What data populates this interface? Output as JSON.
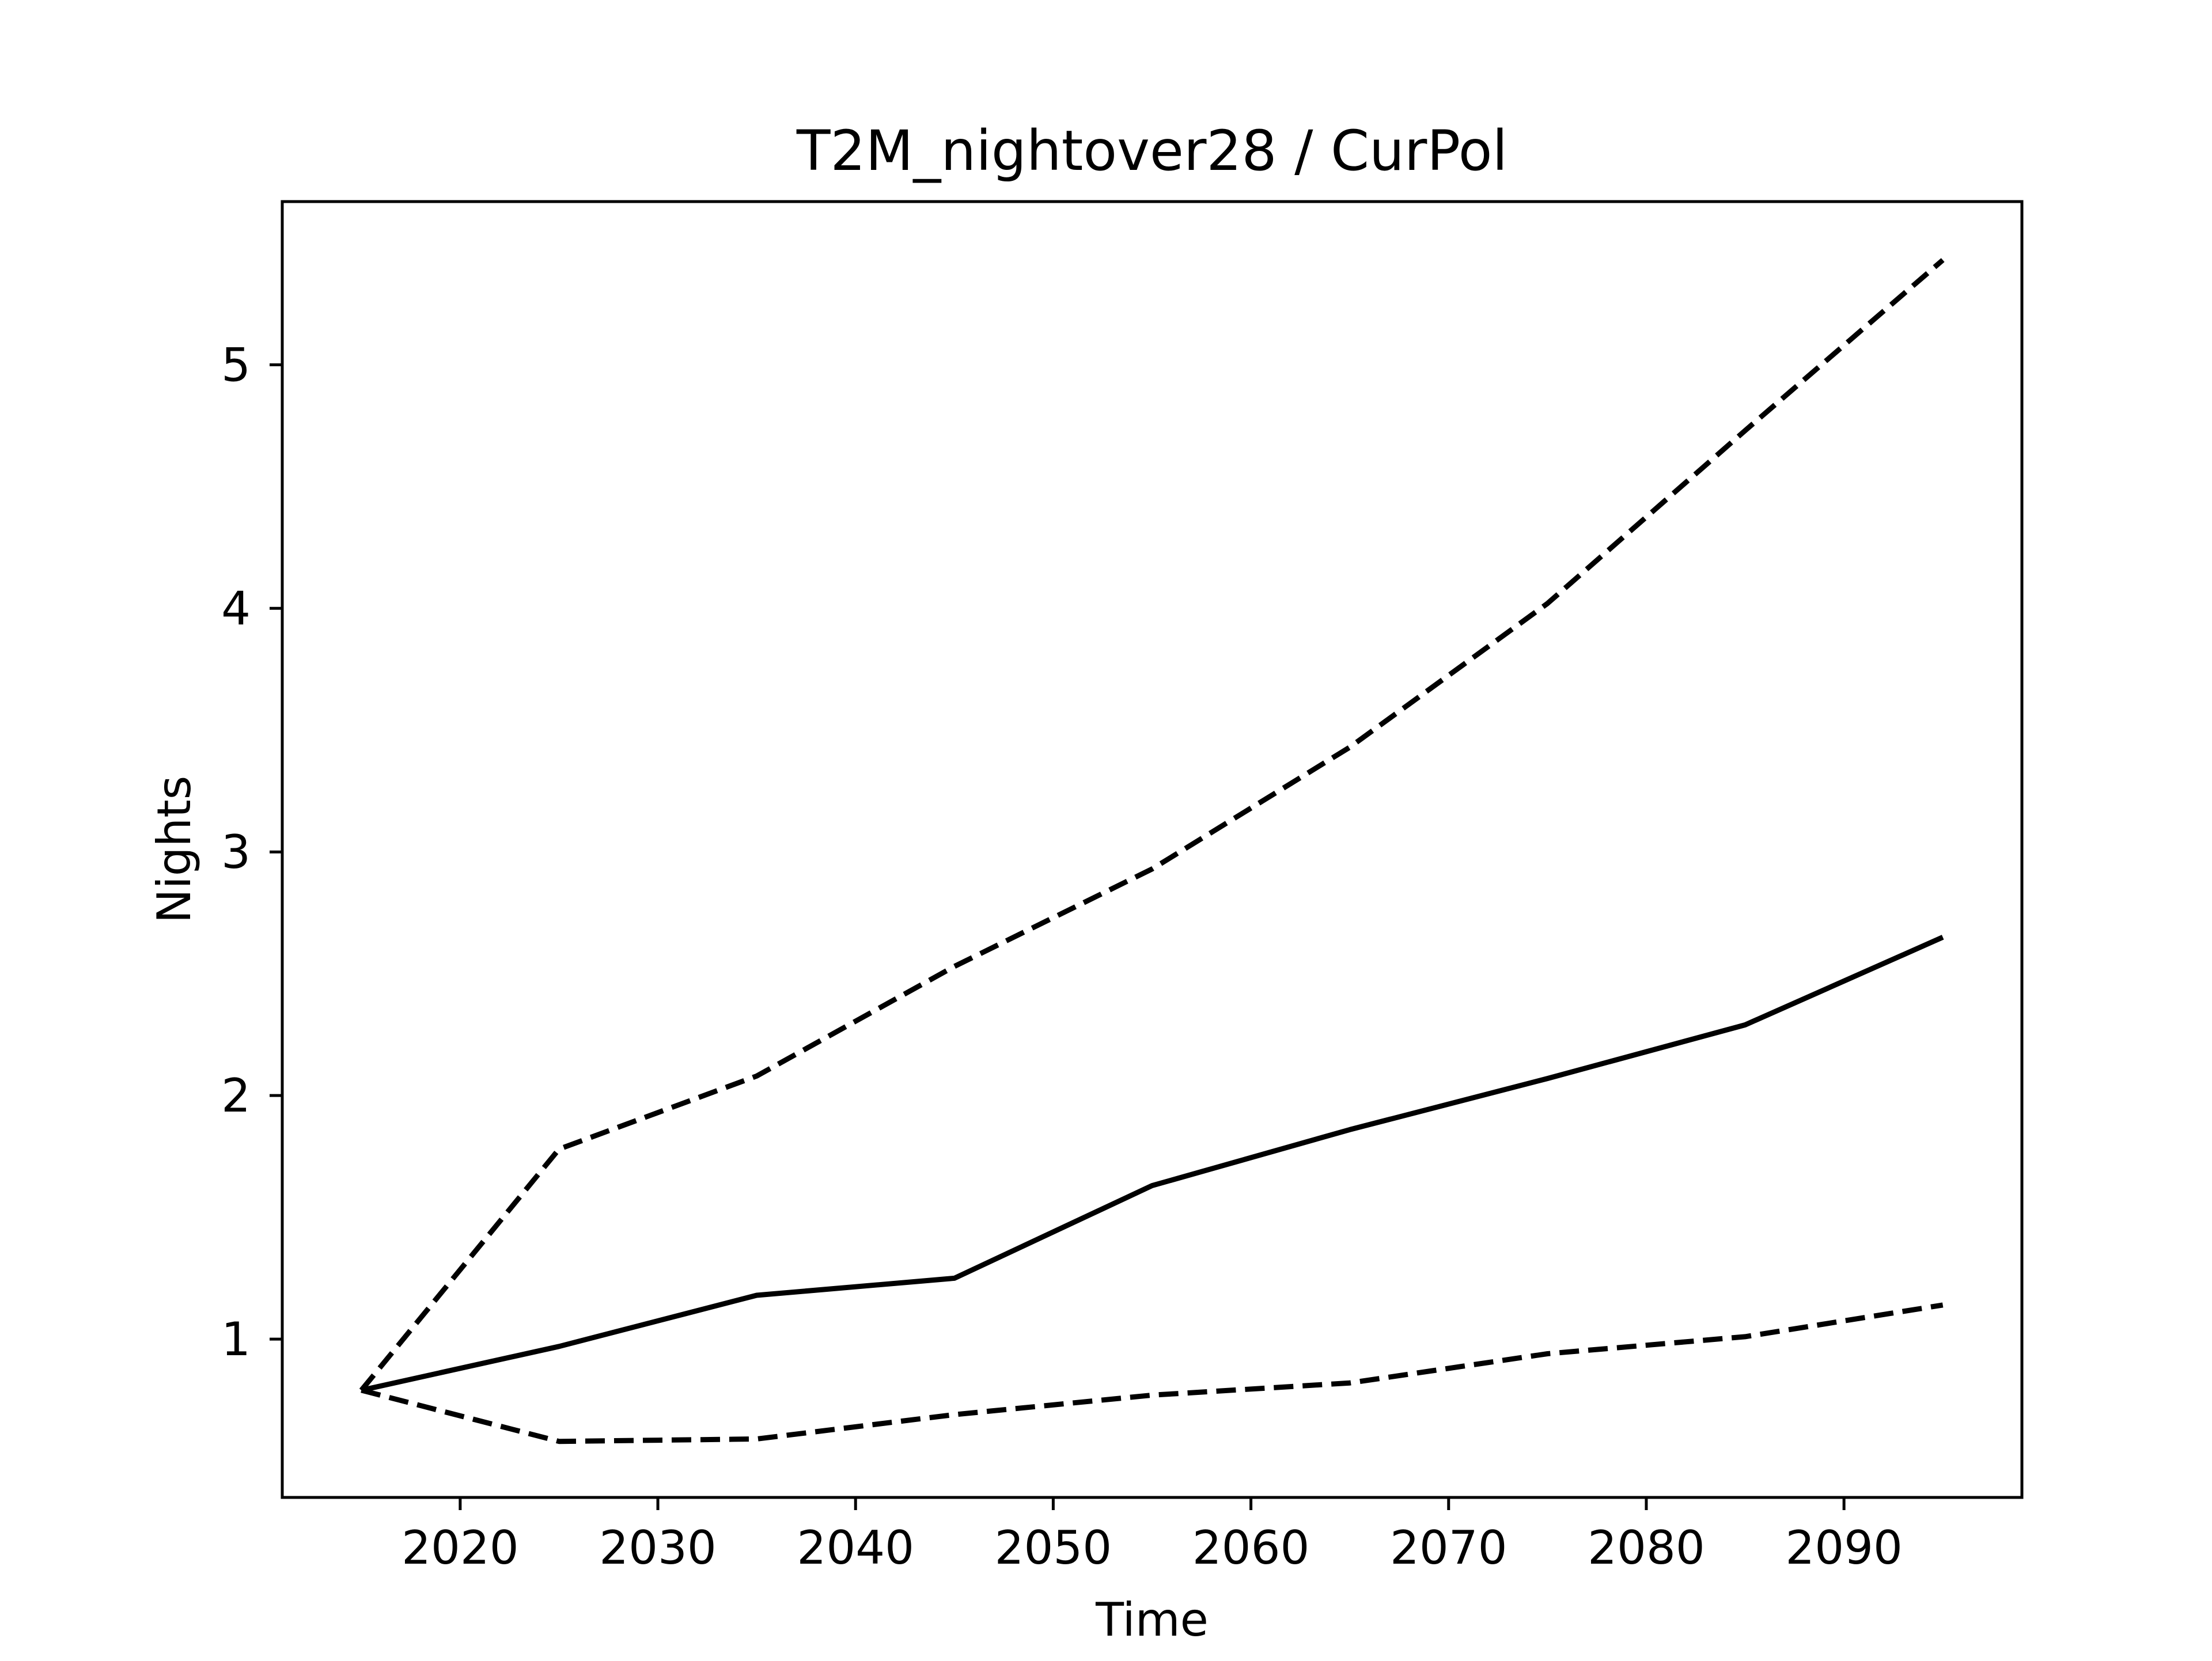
{
  "chart_data": {
    "type": "line",
    "title": "T2M_nightover28 / CurPol",
    "xlabel": "Time",
    "ylabel": "Nights",
    "xlim": [
      2011,
      2099
    ],
    "ylim": [
      0.35,
      5.67
    ],
    "xticks": [
      2020,
      2030,
      2040,
      2050,
      2060,
      2070,
      2080,
      2090
    ],
    "yticks": [
      1,
      2,
      3,
      4,
      5
    ],
    "grid": false,
    "legend": "none",
    "x": [
      2015,
      2025,
      2035,
      2045,
      2055,
      2065,
      2075,
      2085,
      2095
    ],
    "series": [
      {
        "style": "dashed",
        "color": "#000000",
        "values": [
          0.79,
          1.78,
          2.08,
          2.53,
          2.93,
          3.43,
          4.02,
          4.73,
          5.43
        ]
      },
      {
        "style": "solid",
        "color": "#000000",
        "values": [
          0.79,
          0.97,
          1.18,
          1.25,
          1.63,
          1.86,
          2.07,
          2.29,
          2.65
        ]
      },
      {
        "style": "dashed",
        "color": "#000000",
        "values": [
          0.79,
          0.58,
          0.59,
          0.69,
          0.77,
          0.82,
          0.94,
          1.01,
          1.14
        ]
      }
    ]
  }
}
